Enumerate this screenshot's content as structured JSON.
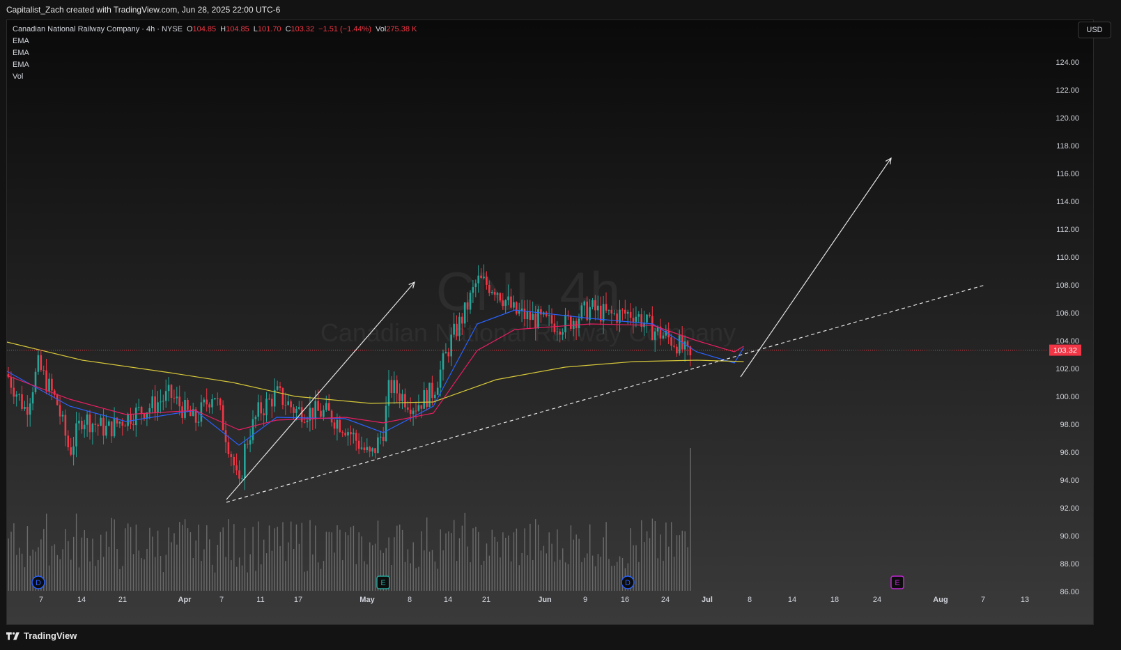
{
  "header": {
    "credit": "Capitalist_Zach created with TradingView.com, Jun 28, 2025 22:00 UTC-6"
  },
  "footer": {
    "brand": "TradingView",
    "logo_icon": "tradingview-logo-icon"
  },
  "legend": {
    "symbol": "Canadian National Railway Company · 4h · NYSE",
    "o_label": "O",
    "o": "104.85",
    "h_label": "H",
    "h": "104.85",
    "l_label": "L",
    "l": "101.70",
    "c_label": "C",
    "c": "103.32",
    "change": "−1.51 (−1.44%)",
    "vol_label": "Vol",
    "vol": "275.38 K",
    "indicators": [
      "EMA",
      "EMA",
      "EMA",
      "Vol"
    ]
  },
  "currency_button": "USD",
  "watermark": {
    "ticker": "CNI, 4h",
    "name": "Canadian National Railway Company"
  },
  "colors": {
    "background": "#0c0c0c",
    "up": "#26a69a",
    "down": "#f23645",
    "ema_fast": "#2962ff",
    "ema_mid": "#e91e63",
    "ema_slow": "#d6c73a",
    "volume": "#6b6b6b",
    "last_price_tag": "#f23645",
    "drawing": "#e6e6e6"
  },
  "chart_data": {
    "type": "candlestick",
    "title": "Canadian National Railway Company · 4h · NYSE",
    "y_axis": {
      "ticks": [
        "124.00",
        "122.00",
        "120.00",
        "118.00",
        "116.00",
        "114.00",
        "112.00",
        "110.00",
        "108.00",
        "106.00",
        "104.00",
        "102.00",
        "100.00",
        "98.00",
        "96.00",
        "94.00",
        "92.00",
        "90.00",
        "88.00",
        "86.00"
      ],
      "ylim": [
        86,
        125
      ]
    },
    "x_axis": {
      "ticks": [
        "7",
        "14",
        "21",
        "Apr",
        "7",
        "11",
        "17",
        "May",
        "8",
        "14",
        "21",
        "Jun",
        "9",
        "16",
        "24",
        "Jul",
        "8",
        "14",
        "18",
        "24",
        "Aug",
        "7",
        "13"
      ],
      "range": [
        "2025-03-02",
        "2025-08-16"
      ]
    },
    "last_price": "103.32",
    "price_path": [
      [
        "2025-03-02",
        101.6
      ],
      [
        "2025-03-05",
        99.0
      ],
      [
        "2025-03-07",
        102.2
      ],
      [
        "2025-03-10",
        99.5
      ],
      [
        "2025-03-12",
        96.0
      ],
      [
        "2025-03-14",
        98.5
      ],
      [
        "2025-03-18",
        97.6
      ],
      [
        "2025-03-21",
        98.5
      ],
      [
        "2025-03-25",
        99.3
      ],
      [
        "2025-03-28",
        100.1
      ],
      [
        "2025-04-01",
        98.2
      ],
      [
        "2025-04-04",
        100.4
      ],
      [
        "2025-04-07",
        95.5
      ],
      [
        "2025-04-08",
        93.2
      ],
      [
        "2025-04-09",
        96.5
      ],
      [
        "2025-04-11",
        98.8
      ],
      [
        "2025-04-14",
        100.2
      ],
      [
        "2025-04-17",
        99.0
      ],
      [
        "2025-04-22",
        98.8
      ],
      [
        "2025-04-25",
        97.8
      ],
      [
        "2025-04-29",
        95.6
      ],
      [
        "2025-05-01",
        97.5
      ],
      [
        "2025-05-02",
        100.8
      ],
      [
        "2025-05-06",
        99.3
      ],
      [
        "2025-05-09",
        100.4
      ],
      [
        "2025-05-12",
        104.2
      ],
      [
        "2025-05-14",
        106.0
      ],
      [
        "2025-05-16",
        108.3
      ],
      [
        "2025-05-19",
        107.8
      ],
      [
        "2025-05-22",
        106.0
      ],
      [
        "2025-05-27",
        105.3
      ],
      [
        "2025-05-30",
        105.2
      ],
      [
        "2025-06-03",
        106.3
      ],
      [
        "2025-06-06",
        105.8
      ],
      [
        "2025-06-10",
        106.0
      ],
      [
        "2025-06-13",
        104.8
      ],
      [
        "2025-06-17",
        103.8
      ],
      [
        "2025-06-20",
        102.1
      ],
      [
        "2025-06-24",
        102.3
      ],
      [
        "2025-06-26",
        101.6
      ],
      [
        "2025-06-27",
        104.5
      ],
      [
        "2025-06-27T12",
        103.32
      ]
    ],
    "ema_series": [
      {
        "values": [
          [
            "2025-03-02",
            101.8
          ],
          [
            "2025-03-12",
            99.3
          ],
          [
            "2025-03-21",
            98.2
          ],
          [
            "2025-04-01",
            99.0
          ],
          [
            "2025-04-08",
            96.5
          ],
          [
            "2025-04-14",
            98.5
          ],
          [
            "2025-04-25",
            98.4
          ],
          [
            "2025-05-01",
            97.4
          ],
          [
            "2025-05-09",
            99.3
          ],
          [
            "2025-05-16",
            105.2
          ],
          [
            "2025-05-22",
            106.2
          ],
          [
            "2025-06-03",
            105.6
          ],
          [
            "2025-06-13",
            105.2
          ],
          [
            "2025-06-20",
            103.2
          ],
          [
            "2025-06-26",
            102.4
          ],
          [
            "2025-06-27T12",
            103.5
          ]
        ]
      },
      {
        "values": [
          [
            "2025-03-02",
            101.5
          ],
          [
            "2025-03-12",
            99.8
          ],
          [
            "2025-03-21",
            98.7
          ],
          [
            "2025-04-01",
            99.0
          ],
          [
            "2025-04-08",
            97.6
          ],
          [
            "2025-04-14",
            98.3
          ],
          [
            "2025-04-25",
            98.5
          ],
          [
            "2025-05-01",
            98.1
          ],
          [
            "2025-05-09",
            98.8
          ],
          [
            "2025-05-16",
            103.3
          ],
          [
            "2025-05-22",
            104.8
          ],
          [
            "2025-06-03",
            105.2
          ],
          [
            "2025-06-13",
            105.1
          ],
          [
            "2025-06-20",
            104.0
          ],
          [
            "2025-06-26",
            103.2
          ],
          [
            "2025-06-27T12",
            103.6
          ]
        ]
      },
      {
        "values": [
          [
            "2025-03-02",
            103.9
          ],
          [
            "2025-03-14",
            102.6
          ],
          [
            "2025-03-28",
            101.7
          ],
          [
            "2025-04-07",
            101.0
          ],
          [
            "2025-04-17",
            100.0
          ],
          [
            "2025-04-29",
            99.5
          ],
          [
            "2025-05-09",
            99.6
          ],
          [
            "2025-05-19",
            101.2
          ],
          [
            "2025-05-30",
            102.1
          ],
          [
            "2025-06-10",
            102.5
          ],
          [
            "2025-06-20",
            102.6
          ],
          [
            "2025-06-27T12",
            102.5
          ]
        ]
      }
    ],
    "drawings": [
      {
        "type": "arrow",
        "from": [
          "2025-04-06",
          92.6
        ],
        "to": [
          "2025-05-06",
          108.2
        ]
      },
      {
        "type": "arrow",
        "from": [
          "2025-06-27",
          101.4
        ],
        "to": [
          "2025-07-21",
          117.1
        ]
      },
      {
        "type": "dashed-trendline",
        "from": [
          "2025-04-06",
          92.4
        ],
        "to": [
          "2025-08-05",
          108.0
        ]
      }
    ],
    "event_markers": [
      {
        "label": "D",
        "date": "2025-03-07",
        "color": "#2962ff"
      },
      {
        "label": "E",
        "date": "2025-05-01",
        "color": "#26a69a"
      },
      {
        "label": "D",
        "date": "2025-06-09",
        "color": "#2962ff"
      },
      {
        "label": "E",
        "date": "2025-07-22",
        "color": "#c026d3"
      }
    ]
  }
}
